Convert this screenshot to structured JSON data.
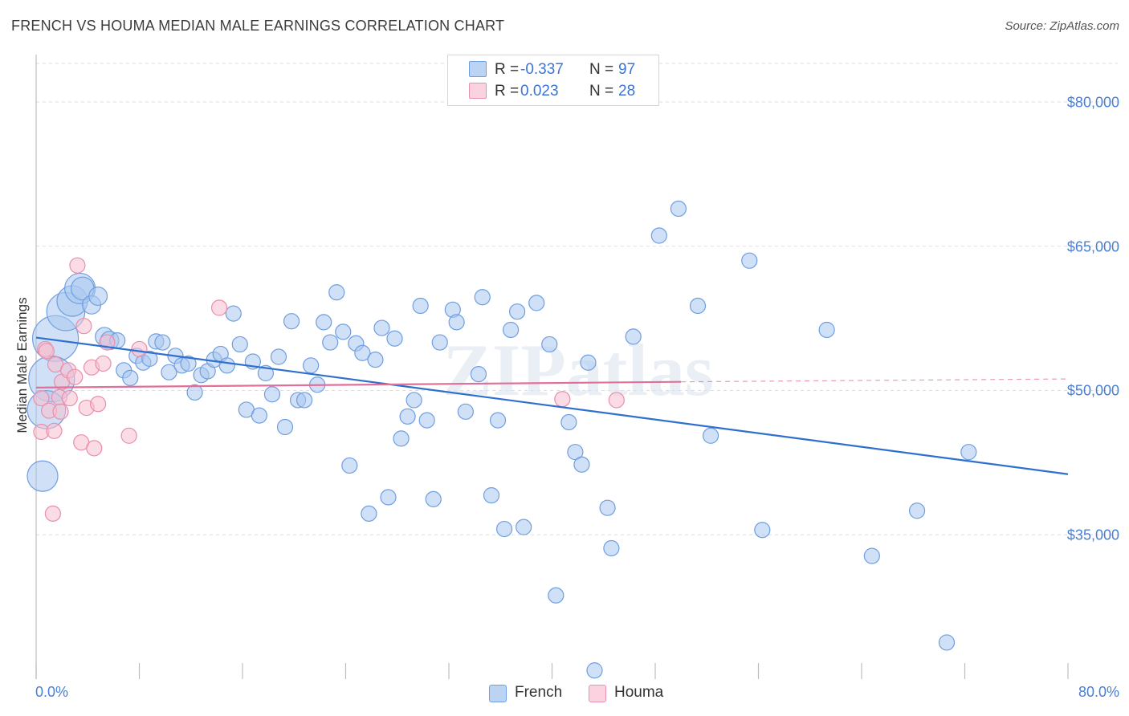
{
  "header": {
    "title": "FRENCH VS HOUMA MEDIAN MALE EARNINGS CORRELATION CHART",
    "source": "Source: ZipAtlas.com"
  },
  "watermark": "ZIPatlas",
  "colors": {
    "french_fill": "#a9c8f0",
    "french_stroke": "#6f9ee0",
    "french_line": "#2f6fd0",
    "houma_fill": "#f7bfd0",
    "houma_stroke": "#e98eac",
    "houma_line": "#e0709a",
    "accent_text": "#4a7fd4",
    "grid": "#dddddd"
  },
  "legend_top": {
    "rows": [
      {
        "r_label": "R =",
        "r_value": "-0.337",
        "n_label": "N =",
        "n_value": "97"
      },
      {
        "r_label": "R =",
        "r_value": "0.023",
        "n_label": "N =",
        "n_value": "28"
      }
    ]
  },
  "legend_bottom": {
    "items": [
      "French",
      "Houma"
    ]
  },
  "chart_data": {
    "type": "scatter",
    "title": "FRENCH VS HOUMA MEDIAN MALE EARNINGS CORRELATION CHART",
    "xlabel": "",
    "ylabel": "Median Male Earnings",
    "xlim": [
      0,
      80
    ],
    "ylim": [
      20000,
      84000
    ],
    "x_tick_labels": [
      "0.0%",
      "80.0%"
    ],
    "y_ticks": [
      35000,
      50000,
      65000,
      80000
    ],
    "y_tick_labels": [
      "$35,000",
      "$50,000",
      "$65,000",
      "$80,000"
    ],
    "grid": true,
    "legend_position": "bottom-center",
    "series": [
      {
        "name": "French",
        "R": -0.337,
        "N": 97,
        "trend": {
          "x": [
            0,
            80
          ],
          "y": [
            55500,
            41300
          ]
        },
        "points": [
          [
            1.5,
            55400,
            3
          ],
          [
            1.2,
            51200,
            3
          ],
          [
            0.8,
            48000,
            2.5
          ],
          [
            0.5,
            41100,
            2
          ],
          [
            2.3,
            58200,
            2.5
          ],
          [
            2.8,
            59300,
            2
          ],
          [
            3.4,
            60600,
            2
          ],
          [
            3.6,
            60600,
            1.5
          ],
          [
            4.3,
            58900,
            1.2
          ],
          [
            4.8,
            59800,
            1.2
          ],
          [
            5.3,
            55600,
            1.2
          ],
          [
            5.7,
            55200,
            1.2
          ],
          [
            6.3,
            55200,
            1
          ],
          [
            6.8,
            52100,
            1
          ],
          [
            7.3,
            51300,
            1
          ],
          [
            7.8,
            53600,
            1
          ],
          [
            8.3,
            52900,
            1
          ],
          [
            8.8,
            53300,
            1
          ],
          [
            9.3,
            55100,
            1
          ],
          [
            9.8,
            55000,
            1
          ],
          [
            10.3,
            51900,
            1
          ],
          [
            10.8,
            53600,
            1
          ],
          [
            11.3,
            52600,
            1
          ],
          [
            11.8,
            52800,
            1
          ],
          [
            12.3,
            49800,
            1
          ],
          [
            12.8,
            51600,
            1
          ],
          [
            13.3,
            52000,
            1
          ],
          [
            13.8,
            53200,
            1
          ],
          [
            14.3,
            53800,
            1
          ],
          [
            14.8,
            52600,
            1
          ],
          [
            15.3,
            58000,
            1
          ],
          [
            15.8,
            54800,
            1
          ],
          [
            16.3,
            48000,
            1
          ],
          [
            16.8,
            53000,
            1
          ],
          [
            17.3,
            47400,
            1
          ],
          [
            17.8,
            51800,
            1
          ],
          [
            18.3,
            49600,
            1
          ],
          [
            18.8,
            53500,
            1
          ],
          [
            19.3,
            46200,
            1
          ],
          [
            19.8,
            57200,
            1
          ],
          [
            20.3,
            49000,
            1
          ],
          [
            20.8,
            49000,
            1
          ],
          [
            21.3,
            52600,
            1
          ],
          [
            21.8,
            50600,
            1
          ],
          [
            22.3,
            57100,
            1
          ],
          [
            22.8,
            55000,
            1
          ],
          [
            23.3,
            60200,
            1
          ],
          [
            23.8,
            56100,
            1
          ],
          [
            24.3,
            42200,
            1
          ],
          [
            24.8,
            54900,
            1
          ],
          [
            25.3,
            53900,
            1
          ],
          [
            25.8,
            37200,
            1
          ],
          [
            26.3,
            53200,
            1
          ],
          [
            26.8,
            56500,
            1
          ],
          [
            27.3,
            38900,
            1
          ],
          [
            27.8,
            55400,
            1
          ],
          [
            28.3,
            45000,
            1
          ],
          [
            28.8,
            47300,
            1
          ],
          [
            29.3,
            49000,
            1
          ],
          [
            29.8,
            58800,
            1
          ],
          [
            30.3,
            46900,
            1
          ],
          [
            30.8,
            38700,
            1
          ],
          [
            31.3,
            55000,
            1
          ],
          [
            32.3,
            58400,
            1
          ],
          [
            32.6,
            57100,
            1
          ],
          [
            33.3,
            47800,
            1
          ],
          [
            34.3,
            51700,
            1
          ],
          [
            34.6,
            59700,
            1
          ],
          [
            35.3,
            39100,
            1
          ],
          [
            35.8,
            46900,
            1
          ],
          [
            36.3,
            35600,
            1
          ],
          [
            36.8,
            56300,
            1
          ],
          [
            37.3,
            58200,
            1
          ],
          [
            37.8,
            35800,
            1
          ],
          [
            38.8,
            59100,
            1
          ],
          [
            39.8,
            54800,
            1
          ],
          [
            40.3,
            28700,
            1
          ],
          [
            41.3,
            46700,
            1
          ],
          [
            41.8,
            43600,
            1
          ],
          [
            42.3,
            42300,
            1
          ],
          [
            42.8,
            52900,
            1
          ],
          [
            43.3,
            20900,
            1
          ],
          [
            44.3,
            37800,
            1
          ],
          [
            44.6,
            33600,
            1
          ],
          [
            46.3,
            55600,
            1
          ],
          [
            48.3,
            66100,
            1
          ],
          [
            49.8,
            68900,
            1
          ],
          [
            51.3,
            58800,
            1
          ],
          [
            52.3,
            45300,
            1
          ],
          [
            55.3,
            63500,
            1
          ],
          [
            56.3,
            35500,
            1
          ],
          [
            61.3,
            56300,
            1
          ],
          [
            64.8,
            32800,
            1
          ],
          [
            68.3,
            37500,
            1
          ],
          [
            70.6,
            23800,
            1
          ],
          [
            72.3,
            43600,
            1
          ]
        ]
      },
      {
        "name": "Houma",
        "R": 0.023,
        "N": 28,
        "trend": {
          "x": [
            0,
            50
          ],
          "y": [
            50300,
            50900
          ],
          "dashed_extension_to_x": 80,
          "dashed_end_y": 51200
        },
        "points": [
          [
            0.4,
            49200,
            1
          ],
          [
            0.4,
            45700,
            1
          ],
          [
            0.7,
            54300,
            1
          ],
          [
            0.8,
            54100,
            1
          ],
          [
            1.0,
            47900,
            1
          ],
          [
            1.3,
            37200,
            1
          ],
          [
            1.4,
            45800,
            1
          ],
          [
            1.5,
            52700,
            1
          ],
          [
            1.8,
            49300,
            1
          ],
          [
            1.9,
            47800,
            1
          ],
          [
            2.0,
            50900,
            1
          ],
          [
            2.5,
            52100,
            1
          ],
          [
            2.6,
            49200,
            1
          ],
          [
            3.0,
            51400,
            1
          ],
          [
            3.2,
            63000,
            1
          ],
          [
            3.5,
            44600,
            1
          ],
          [
            3.7,
            56700,
            1
          ],
          [
            3.9,
            48200,
            1
          ],
          [
            4.3,
            52400,
            1
          ],
          [
            4.5,
            44000,
            1
          ],
          [
            4.8,
            48600,
            1
          ],
          [
            5.2,
            52800,
            1
          ],
          [
            5.5,
            55000,
            1
          ],
          [
            7.2,
            45300,
            1
          ],
          [
            8.0,
            54300,
            1
          ],
          [
            14.2,
            58600,
            1
          ],
          [
            40.8,
            49100,
            1
          ],
          [
            45.0,
            49000,
            1
          ]
        ]
      }
    ]
  }
}
